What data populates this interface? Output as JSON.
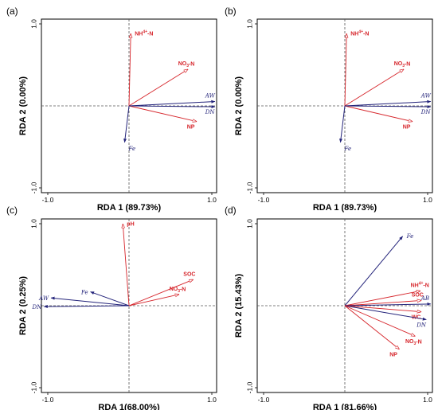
{
  "colors": {
    "response": "#d6252b",
    "explanatory": "#23237a",
    "frame": "#000000",
    "dashed": "#555555"
  },
  "chart_data": [
    {
      "type": "scatter",
      "panel_label": "(a)",
      "xlabel": "RDA 1 (89.73%)",
      "ylabel": "RDA 2 (0.00%)",
      "xlim": [
        -1.0,
        1.0
      ],
      "ylim": [
        -1.0,
        1.0
      ],
      "x_ticks": [
        "-1.0",
        "1.0"
      ],
      "y_ticks": [
        "1.0",
        "-1.0"
      ],
      "vectors": [
        {
          "label": "NH",
          "sup": "4",
          "sup_kind": "up",
          "tail": "-N",
          "group": "response",
          "x": 0.02,
          "y": 0.83
        },
        {
          "label": "NO",
          "sup": "3",
          "sup_kind": "down",
          "tail": "-N",
          "group": "response",
          "x": 0.67,
          "y": 0.42
        },
        {
          "label": "NP",
          "group": "response",
          "x": 0.77,
          "y": -0.18
        },
        {
          "label": "AW",
          "group": "explanatory",
          "x": 0.98,
          "y": 0.05
        },
        {
          "label": "DN",
          "group": "explanatory",
          "x": 0.98,
          "y": -0.01
        },
        {
          "label": "Fe",
          "group": "explanatory",
          "x": -0.05,
          "y": -0.42
        }
      ]
    },
    {
      "type": "scatter",
      "panel_label": "(b)",
      "xlabel": "RDA 1 (89.73%)",
      "ylabel": "RDA 2 (0.00%)",
      "xlim": [
        -1.0,
        1.0
      ],
      "ylim": [
        -1.0,
        1.0
      ],
      "x_ticks": [
        "-1.0",
        "1.0"
      ],
      "y_ticks": [
        "1.0",
        "-1.0"
      ],
      "vectors": [
        {
          "label": "NH",
          "sup": "4",
          "sup_kind": "up",
          "tail": "-N",
          "group": "response",
          "x": 0.02,
          "y": 0.83
        },
        {
          "label": "NO",
          "sup": "3",
          "sup_kind": "down",
          "tail": "-N",
          "group": "response",
          "x": 0.67,
          "y": 0.42
        },
        {
          "label": "NP",
          "group": "response",
          "x": 0.77,
          "y": -0.18
        },
        {
          "label": "AW",
          "group": "explanatory",
          "x": 0.98,
          "y": 0.05
        },
        {
          "label": "DN",
          "group": "explanatory",
          "x": 0.98,
          "y": -0.01
        },
        {
          "label": "Fe",
          "group": "explanatory",
          "x": -0.05,
          "y": -0.42
        }
      ]
    },
    {
      "type": "scatter",
      "panel_label": "(c)",
      "xlabel": "RDA 1(68.00%)",
      "ylabel": "RDA 2 (0.25%)",
      "xlim": [
        -1.0,
        1.0
      ],
      "ylim": [
        -1.0,
        1.0
      ],
      "x_ticks": [
        "-1.0",
        "1.0"
      ],
      "y_ticks": [
        "1.0",
        "-1.0"
      ],
      "vectors": [
        {
          "label": "pH",
          "group": "response",
          "x": -0.07,
          "y": 0.94
        },
        {
          "label": "SOC",
          "group": "response",
          "x": 0.73,
          "y": 0.3
        },
        {
          "label": "NO",
          "sup": "3",
          "sup_kind": "down",
          "tail": "-N",
          "group": "response",
          "x": 0.57,
          "y": 0.13
        },
        {
          "label": "Fe",
          "group": "explanatory",
          "x": -0.44,
          "y": 0.16
        },
        {
          "label": "AW",
          "group": "explanatory",
          "x": -0.89,
          "y": 0.09
        },
        {
          "label": "DN",
          "group": "explanatory",
          "x": -0.97,
          "y": -0.01
        }
      ]
    },
    {
      "type": "scatter",
      "panel_label": "(d)",
      "xlabel": "RDA 1 (81.66%)",
      "ylabel": "RDA 2 (15.43%)",
      "xlim": [
        -1.0,
        1.0
      ],
      "ylim": [
        -1.0,
        1.0
      ],
      "x_ticks": [
        "-1.0",
        "1.0"
      ],
      "y_ticks": [
        "1.0",
        "-1.0"
      ],
      "vectors": [
        {
          "label": "Fe",
          "group": "explanatory",
          "x": 0.66,
          "y": 0.8
        },
        {
          "label": "NH",
          "sup": "4",
          "sup_kind": "up",
          "tail": "-N",
          "group": "response",
          "x": 0.86,
          "y": 0.17
        },
        {
          "label": "SOC",
          "group": "response",
          "x": 0.87,
          "y": 0.06
        },
        {
          "label": "AB",
          "group": "explanatory",
          "x": 0.98,
          "y": 0.02
        },
        {
          "label": "WC",
          "group": "response",
          "x": 0.87,
          "y": -0.07
        },
        {
          "label": "DN",
          "group": "explanatory",
          "x": 0.93,
          "y": -0.16
        },
        {
          "label": "NO",
          "sup": "3",
          "sup_kind": "down",
          "tail": "-N",
          "group": "response",
          "x": 0.8,
          "y": -0.35
        },
        {
          "label": "NP",
          "group": "response",
          "x": 0.62,
          "y": -0.5
        }
      ]
    }
  ]
}
